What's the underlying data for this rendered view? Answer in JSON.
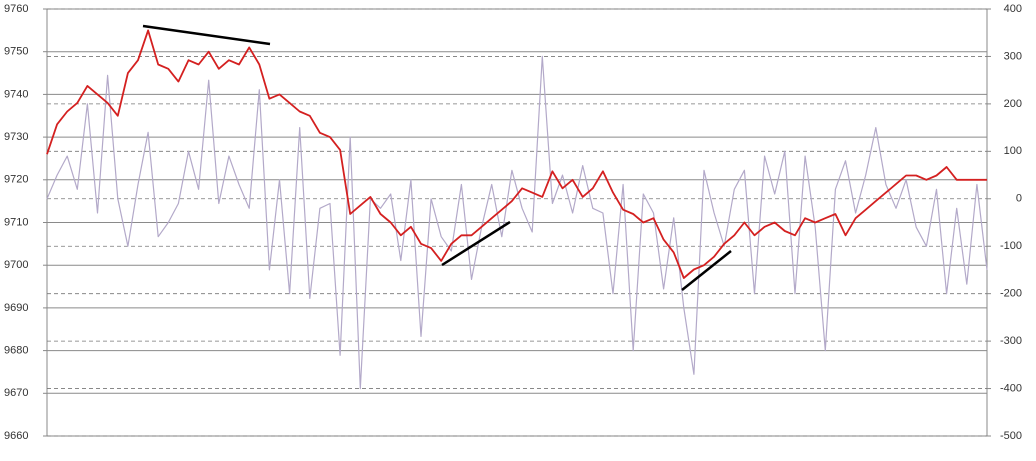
{
  "chart_data": {
    "type": "line",
    "ylim": [
      9660,
      9760
    ],
    "yticks": [
      9660,
      9670,
      9680,
      9690,
      9700,
      9710,
      9720,
      9730,
      9740,
      9750,
      9760
    ],
    "y2lim": [
      -500,
      400
    ],
    "y2ticks": [
      -500,
      -400,
      -300,
      -200,
      -100,
      0,
      100,
      200,
      300,
      400
    ],
    "grid": true,
    "series": [
      {
        "color": "#d42020",
        "values": [
          9726,
          9733,
          9736,
          9738,
          9742,
          9740,
          9738,
          9735,
          9745,
          9748,
          9755,
          9747,
          9746,
          9743,
          9748,
          9747,
          9750,
          9746,
          9748,
          9747,
          9751,
          9747,
          9739,
          9740,
          9738,
          9736,
          9735,
          9731,
          9730,
          9727,
          9712,
          9714,
          9716,
          9712,
          9710,
          9707,
          9709,
          9705,
          9704,
          9701,
          9705,
          9707,
          9707,
          9709,
          9711,
          9713,
          9715,
          9718,
          9717,
          9716,
          9722,
          9718,
          9720,
          9716,
          9718,
          9722,
          9717,
          9713,
          9712,
          9710,
          9711,
          9706,
          9703,
          9697,
          9699,
          9700,
          9702,
          9705,
          9707,
          9710,
          9707,
          9709,
          9710,
          9708,
          9707,
          9711,
          9710,
          9711,
          9712,
          9707,
          9711,
          9713,
          9715,
          9717,
          9719,
          9721,
          9721,
          9720,
          9721,
          9723,
          9720,
          9720,
          9720,
          9720
        ]
      },
      {
        "color": "#b3a9c9",
        "axis": "y2",
        "values": [
          0,
          50,
          90,
          20,
          200,
          -30,
          260,
          0,
          -100,
          30,
          140,
          -80,
          -50,
          -10,
          100,
          20,
          250,
          -10,
          90,
          30,
          -20,
          230,
          -150,
          40,
          -200,
          150,
          -210,
          -20,
          -10,
          -330,
          130,
          -400,
          0,
          -20,
          10,
          -130,
          40,
          -290,
          0,
          -80,
          -110,
          30,
          -170,
          -60,
          30,
          -80,
          60,
          -20,
          -70,
          300,
          -10,
          50,
          -30,
          70,
          -20,
          -30,
          -200,
          30,
          -320,
          10,
          -30,
          -190,
          -40,
          -230,
          -370,
          60,
          -30,
          -100,
          20,
          60,
          -200,
          90,
          10,
          100,
          -200,
          90,
          -60,
          -320,
          20,
          80,
          -30,
          50,
          150,
          30,
          -20,
          40,
          -60,
          -100,
          20,
          -200,
          -20,
          -180,
          30,
          -150
        ]
      }
    ]
  }
}
